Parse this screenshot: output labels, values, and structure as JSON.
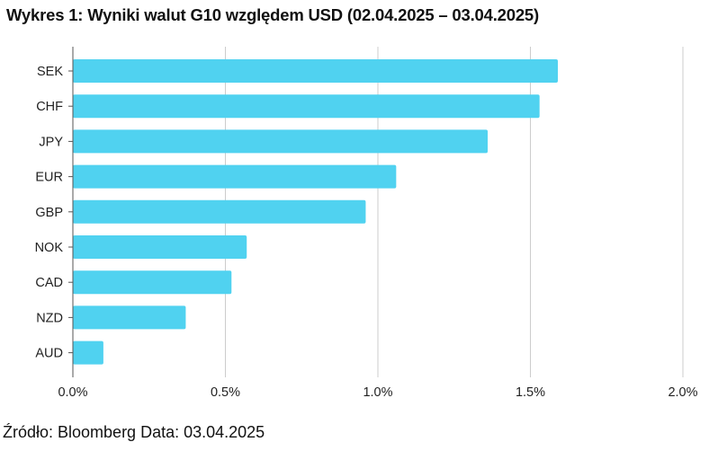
{
  "title": "Wykres 1: Wyniki walut G10 względem USD (02.04.2025 – 03.04.2025)",
  "source": "Źródło: Bloomberg Data: 03.04.2025",
  "colors": {
    "bar": "#50D2F0",
    "grid": "#CCCCCC",
    "axis": "#555555"
  },
  "chart_data": {
    "type": "bar",
    "orientation": "horizontal",
    "title": "Wykres 1: Wyniki walut G10 względem USD (02.04.2025 – 03.04.2025)",
    "categories": [
      "SEK",
      "CHF",
      "JPY",
      "EUR",
      "GBP",
      "NOK",
      "CAD",
      "NZD",
      "AUD"
    ],
    "values": [
      1.59,
      1.53,
      1.36,
      1.06,
      0.96,
      0.57,
      0.52,
      0.37,
      0.1
    ],
    "unit": "%",
    "xlim": [
      0,
      2.0
    ],
    "xticks": [
      0,
      0.5,
      1.0,
      1.5,
      2.0
    ],
    "xtick_labels": [
      "0.0%",
      "0.5%",
      "1.0%",
      "1.5%",
      "2.0%"
    ],
    "grid": true,
    "legend": "none",
    "xlabel": "",
    "ylabel": ""
  }
}
